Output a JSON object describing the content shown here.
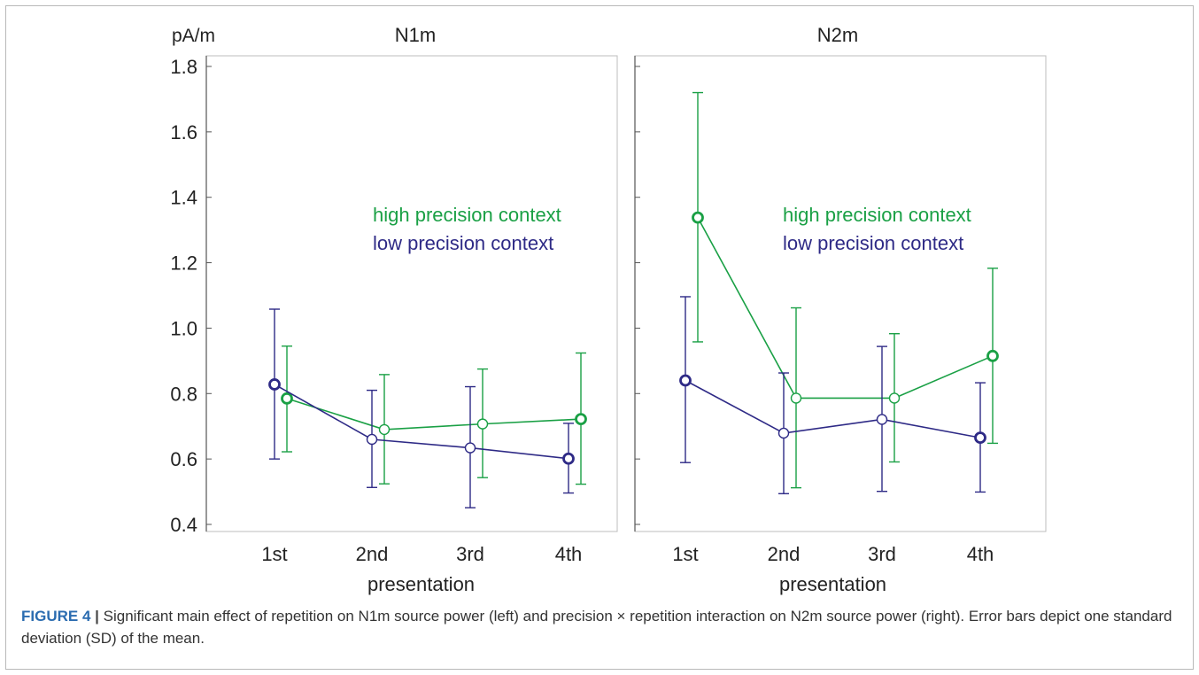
{
  "figure": {
    "label": "FIGURE 4",
    "separator": "|",
    "caption": "Significant main effect of repetition on N1m source power (left) and precision × repetition interaction on N2m source power (right). Error bars depict one standard deviation (SD) of the mean."
  },
  "colors": {
    "high": "#1aa045",
    "low": "#2e2a86",
    "axis": "#555555",
    "text": "#222222"
  },
  "chart_data": [
    {
      "type": "line",
      "title": "N1m",
      "ylabel": "pA/m",
      "xlabel": "presentation",
      "categories": [
        "1st",
        "2nd",
        "3rd",
        "4th"
      ],
      "ylim": [
        0.4,
        1.8
      ],
      "yticks": [
        "0.4",
        "0.6",
        "0.8",
        "1.0",
        "1.2",
        "1.4",
        "1.6",
        "1.8"
      ],
      "grid": false,
      "legend": [
        "high precision context",
        "low precision context"
      ],
      "series": [
        {
          "name": "high precision context",
          "color": "#1aa045",
          "values": [
            0.785,
            0.69,
            0.707,
            0.722
          ],
          "upper": [
            0.945,
            0.858,
            0.875,
            0.924
          ],
          "lower": [
            0.622,
            0.524,
            0.543,
            0.523
          ],
          "bold": [
            true,
            false,
            false,
            true
          ]
        },
        {
          "name": "low precision context",
          "color": "#2e2a86",
          "values": [
            0.828,
            0.66,
            0.634,
            0.601
          ],
          "upper": [
            1.058,
            0.81,
            0.821,
            0.709
          ],
          "lower": [
            0.6,
            0.513,
            0.451,
            0.496
          ],
          "bold": [
            true,
            false,
            false,
            true
          ]
        }
      ]
    },
    {
      "type": "line",
      "title": "N2m",
      "ylabel": "",
      "xlabel": "presentation",
      "categories": [
        "1st",
        "2nd",
        "3rd",
        "4th"
      ],
      "ylim": [
        0.4,
        1.8
      ],
      "yticks": [],
      "grid": false,
      "legend": [
        "high precision context",
        "low precision context"
      ],
      "series": [
        {
          "name": "high precision context",
          "color": "#1aa045",
          "values": [
            1.338,
            0.786,
            0.786,
            0.915
          ],
          "upper": [
            1.72,
            1.062,
            0.983,
            1.183
          ],
          "lower": [
            0.958,
            0.512,
            0.591,
            0.648
          ],
          "bold": [
            true,
            false,
            false,
            true
          ]
        },
        {
          "name": "low precision context",
          "color": "#2e2a86",
          "values": [
            0.84,
            0.679,
            0.721,
            0.665
          ],
          "upper": [
            1.096,
            0.863,
            0.944,
            0.833
          ],
          "lower": [
            0.589,
            0.494,
            0.501,
            0.499
          ],
          "bold": [
            true,
            false,
            false,
            true
          ]
        }
      ]
    }
  ]
}
